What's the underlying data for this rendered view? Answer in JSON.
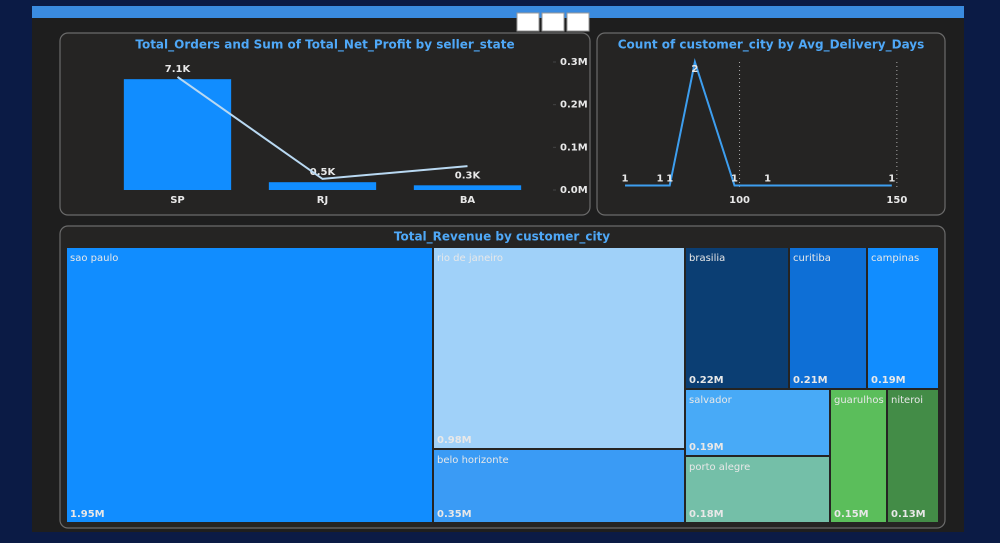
{
  "chart_data": [
    {
      "type": "bar",
      "title": "Total_Orders and Sum of Total_Net_Profit by seller_state",
      "categories": [
        "SP",
        "RJ",
        "BA"
      ],
      "series": [
        {
          "color": "#118DFF",
          "values": [
            7100,
            500,
            300
          ],
          "value_labels": [
            "7.1K",
            "0.5K",
            "0.3K"
          ]
        },
        {
          "type": "line",
          "axis": "y2",
          "color": "#B9D9F2",
          "values": [
            265000,
            26000,
            56000
          ]
        }
      ],
      "ylim": [
        0,
        8200
      ],
      "y2lim": [
        0,
        300000
      ],
      "y2ticks": [
        {
          "value": 0,
          "label": "0.0M"
        },
        {
          "value": 100000,
          "label": "0.1M"
        },
        {
          "value": 200000,
          "label": "0.2M"
        },
        {
          "value": 300000,
          "label": "0.3M"
        }
      ]
    },
    {
      "type": "line",
      "title": "Count of customer_city by Avg_Delivery_Days",
      "x": [
        63.6,
        74.7,
        77.8,
        85.8,
        98.4,
        108.9,
        148.4
      ],
      "values": [
        1,
        1,
        1,
        2,
        1,
        1,
        1
      ],
      "color": "#3D9EEF",
      "xlim": [
        62,
        151
      ],
      "xticks": [
        100,
        150
      ],
      "ylim": [
        0.98,
        2.0
      ],
      "grid": true
    },
    {
      "type": "treemap",
      "title": "Total_Revenue by customer_city",
      "categories": [
        "sao paulo",
        "rio de janeiro",
        "belo horizonte",
        "brasilia",
        "curitiba",
        "campinas",
        "salvador",
        "porto alegre",
        "guarulhos",
        "niteroi"
      ],
      "values": [
        1.95,
        0.98,
        0.35,
        0.22,
        0.21,
        0.19,
        0.19,
        0.18,
        0.15,
        0.13
      ],
      "value_labels": [
        "1.95M",
        "0.98M",
        "0.35M",
        "0.22M",
        "0.21M",
        "0.19M",
        "0.19M",
        "0.18M",
        "0.15M",
        "0.13M"
      ],
      "colors": [
        "#118DFF",
        "#A0D1F9",
        "#3A9BF5",
        "#0B3E73",
        "#0E6FD6",
        "#118DFF",
        "#48AAF7",
        "#74BFA8",
        "#5BBE5B",
        "#438C47"
      ]
    }
  ]
}
